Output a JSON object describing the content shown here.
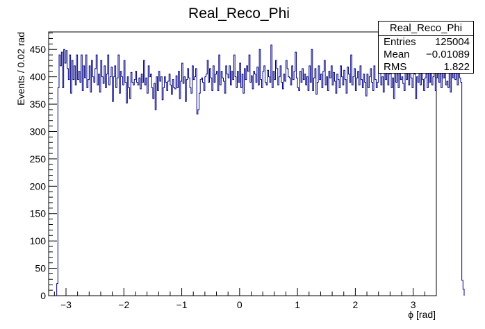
{
  "chart_data": {
    "type": "histogram",
    "title": "Real_Reco_Phi",
    "xlabel": "ϕ [rad]",
    "ylabel": "Events / 0.02 rad",
    "xlim": [
      -3.3,
      3.4
    ],
    "ylim": [
      0,
      482
    ],
    "x_ticks": [
      -3,
      -2,
      -1,
      0,
      1,
      2,
      3
    ],
    "x_tick_labels": [
      "−3",
      "−2",
      "−1",
      "0",
      "1",
      "2",
      "3"
    ],
    "y_ticks": [
      0,
      50,
      100,
      150,
      200,
      250,
      300,
      350,
      400,
      450
    ],
    "y_tick_labels": [
      "0",
      "50",
      "100",
      "150",
      "200",
      "250",
      "300",
      "350",
      "400",
      "450"
    ],
    "bin_width": 0.02,
    "bins_start": -3.16,
    "values": [
      22,
      380,
      440,
      420,
      445,
      380,
      450,
      425,
      448,
      415,
      395,
      440,
      370,
      430,
      395,
      420,
      385,
      440,
      395,
      410,
      390,
      440,
      375,
      420,
      398,
      440,
      380,
      395,
      420,
      372,
      430,
      400,
      390,
      415,
      440,
      385,
      405,
      372,
      430,
      400,
      388,
      420,
      380,
      405,
      440,
      385,
      400,
      418,
      355,
      400,
      420,
      380,
      398,
      440,
      370,
      410,
      400,
      385,
      430,
      390,
      352,
      400,
      380,
      360,
      408,
      390,
      385,
      395,
      410,
      390,
      385,
      398,
      378,
      405,
      390,
      430,
      385,
      398,
      370,
      420,
      400,
      405,
      380,
      360,
      388,
      340,
      400,
      375,
      410,
      392,
      400,
      358,
      380,
      400,
      390,
      375,
      392,
      405,
      385,
      368,
      395,
      380,
      378,
      402,
      380,
      410,
      360,
      392,
      425,
      388,
      400,
      355,
      395,
      415,
      398,
      380,
      370,
      420,
      395,
      400,
      415,
      332,
      340,
      370,
      395,
      398,
      390,
      375,
      400,
      405,
      430,
      390,
      415,
      398,
      375,
      420,
      390,
      405,
      410,
      375,
      440,
      385,
      410,
      398,
      392,
      370,
      420,
      405,
      398,
      420,
      385,
      410,
      395,
      440,
      400,
      380,
      410,
      390,
      425,
      380,
      405,
      370,
      415,
      395,
      420,
      410,
      440,
      390,
      402,
      378,
      410,
      405,
      390,
      418,
      385,
      450,
      395,
      380,
      410,
      420,
      390,
      385,
      412,
      400,
      390,
      458,
      380,
      410,
      395,
      430,
      415,
      385,
      400,
      420,
      390,
      378,
      405,
      392,
      430,
      415,
      400,
      398,
      385,
      420,
      395,
      410,
      445,
      398,
      380,
      375,
      410,
      390,
      415,
      395,
      405,
      385,
      400,
      375,
      420,
      390,
      450,
      375,
      398,
      415,
      368,
      390,
      420,
      395,
      405,
      380,
      410,
      430,
      385,
      400,
      375,
      410,
      398,
      420,
      385,
      408,
      392,
      370,
      405,
      395,
      380,
      420,
      400,
      385,
      412,
      395,
      370,
      418,
      405,
      390,
      440,
      385,
      400,
      415,
      375,
      398,
      410,
      385,
      420,
      395,
      380,
      405,
      390,
      365,
      405,
      380,
      400,
      415,
      390,
      375,
      420,
      395,
      380,
      390,
      408,
      420,
      385,
      400,
      372,
      450,
      395,
      410,
      385,
      405,
      420,
      380,
      398,
      360,
      412,
      390,
      405,
      380,
      420,
      395,
      400,
      388,
      375,
      410,
      395,
      420,
      385,
      455,
      398,
      380,
      415,
      405,
      360,
      400,
      390,
      420,
      385,
      410,
      395,
      375,
      398,
      405,
      380,
      420,
      390,
      408,
      385,
      400,
      410,
      375,
      398,
      415,
      390,
      405,
      380,
      420,
      398,
      410,
      385,
      392,
      380,
      410,
      372,
      425,
      398,
      440,
      395,
      410,
      385,
      420,
      398,
      390,
      28,
      12
    ],
    "stats": {
      "name": "Real_Reco_Phi",
      "entries_label": "Entries",
      "entries": "125004",
      "mean_label": "Mean",
      "mean": "−0.01089",
      "rms_label": "RMS",
      "rms": "1.822"
    },
    "colors": {
      "line": "#000080",
      "axis": "#000000",
      "background": "#ffffff"
    },
    "grid": false,
    "legend": "top-right"
  }
}
